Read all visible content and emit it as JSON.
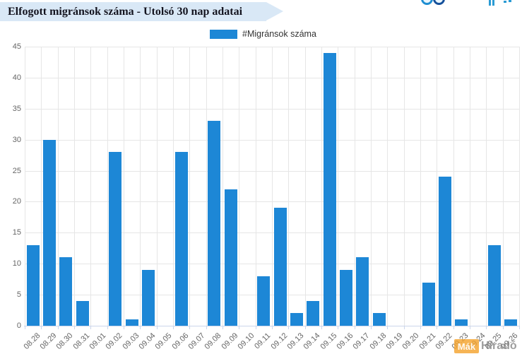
{
  "header": {
    "title": "Elfogott migránsok száma - Utolsó 30 nap adatai",
    "banner_color": "#d9e8f6",
    "title_color": "#14141f"
  },
  "top_icons": {
    "rings_icon_color": "#1f8ed2",
    "fragment_color": "#2b9bd4"
  },
  "legend": {
    "label": "#Migránsok száma",
    "swatch_color": "#1d87d6"
  },
  "chart_data": {
    "type": "bar",
    "title": "Elfogott migránsok száma - Utolsó 30 nap adatai",
    "series_name": "#Migránsok száma",
    "categories": [
      "08.28",
      "08.29",
      "08.30",
      "08.31",
      "09.01",
      "09.02",
      "09.03",
      "09.04",
      "09.05",
      "09.06",
      "09.07",
      "09.08",
      "09.09",
      "09.10",
      "09.11",
      "09.12",
      "09.13",
      "09.14",
      "09.15",
      "09.16",
      "09.17",
      "09.18",
      "09.19",
      "09.20",
      "09.21",
      "09.22",
      "09.23",
      "09.24",
      "09.25",
      "09.26"
    ],
    "values": [
      13,
      30,
      11,
      4,
      0,
      28,
      1,
      9,
      0,
      28,
      0,
      33,
      22,
      0,
      8,
      19,
      2,
      4,
      44,
      9,
      11,
      2,
      0,
      0,
      7,
      24,
      1,
      0,
      13,
      1
    ],
    "xlabel": "",
    "ylabel": "",
    "ylim": [
      0,
      45
    ],
    "ytick_step": 5,
    "grid": true,
    "legend_position": "top-center",
    "bar_color": "#1d87d6",
    "grid_color": "#e6e6e6",
    "axis_line_color": "#ccd6eb",
    "tick_color": "#ccd6eb",
    "label_color": "#666666"
  },
  "watermark": {
    "logo_text": "Mák",
    "site_text": "Híradó",
    "logo_color": "#f4a42e"
  }
}
